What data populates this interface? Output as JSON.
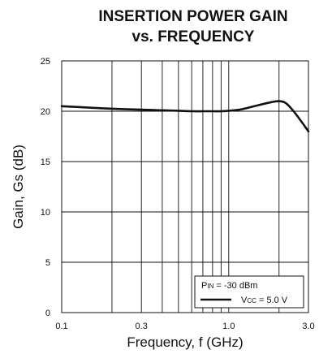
{
  "chart_data": {
    "type": "line",
    "title_lines": [
      "INSERTION POWER GAIN",
      "vs. FREQUENCY"
    ],
    "xlabel": "Frequency, f (GHz)",
    "ylabel": "Gain, Gs (dB)",
    "x_scale": "log",
    "xlim": [
      0.1,
      3.0
    ],
    "ylim": [
      0,
      25
    ],
    "x_ticks": [
      {
        "value": 0.1,
        "label": "0.1"
      },
      {
        "value": 0.3,
        "label": "0.3"
      },
      {
        "value": 1.0,
        "label": "1.0"
      },
      {
        "value": 3.0,
        "label": "3.0"
      }
    ],
    "x_gridlines": [
      0.1,
      0.2,
      0.3,
      0.4,
      0.5,
      0.6,
      0.7,
      0.8,
      0.9,
      1.0,
      2.0,
      3.0
    ],
    "y_ticks": [
      0,
      5,
      10,
      15,
      20,
      25
    ],
    "grid": true,
    "legend": {
      "placement": "bottom-right",
      "condition_main": "P",
      "condition_sub": "IN",
      "condition_rest": " = -30 dBm",
      "series_main": "V",
      "series_sub": "CC",
      "series_rest": " = 5.0 V"
    },
    "series": [
      {
        "x": [
          0.1,
          0.15,
          0.2,
          0.3,
          0.4,
          0.5,
          0.6,
          0.7,
          0.8,
          0.9,
          1.0,
          1.2,
          1.5,
          1.8,
          2.0,
          2.2,
          2.5,
          3.0
        ],
        "y": [
          20.5,
          20.35,
          20.25,
          20.15,
          20.1,
          20.05,
          20.0,
          20.0,
          20.0,
          20.0,
          20.05,
          20.2,
          20.6,
          20.9,
          21.0,
          20.8,
          19.8,
          18.0
        ]
      }
    ],
    "colors": {
      "line": "#111111",
      "grid": "#111111",
      "frame": "#111111"
    }
  }
}
